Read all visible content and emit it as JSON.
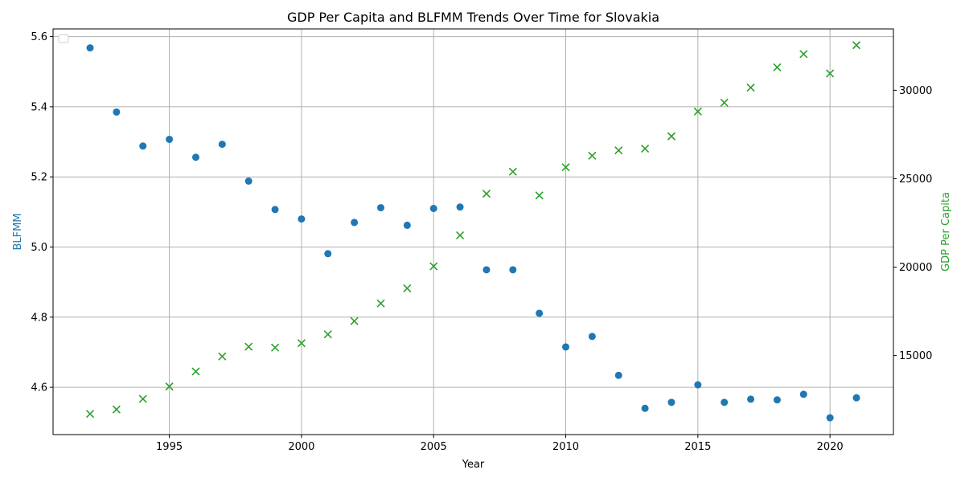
{
  "chart_data": {
    "type": "scatter",
    "title": "GDP Per Capita and BLFMM Trends Over Time for Slovakia",
    "xlabel": "Year",
    "ylabel_left": "BLFMM",
    "ylabel_right": "GDP Per Capita",
    "xlim": [
      1990.6,
      2022.4
    ],
    "ylim_left": [
      4.465,
      5.622
    ],
    "ylim_right": [
      10530,
      33470
    ],
    "x_ticks": [
      1995,
      2000,
      2005,
      2010,
      2015,
      2020
    ],
    "y_ticks_left": [
      4.6,
      4.8,
      5.0,
      5.2,
      5.4,
      5.6
    ],
    "y_ticks_right": [
      15000,
      20000,
      25000,
      30000
    ],
    "grid": true,
    "legend": "top-left (empty)",
    "colors": {
      "blfmm": "#1f77b4",
      "gdp": "#2ca02c"
    },
    "series": [
      {
        "key": "blfmm",
        "axis": "left",
        "marker": "circle",
        "x": [
          1992,
          1993,
          1994,
          1995,
          1996,
          1997,
          1998,
          1999,
          2000,
          2001,
          2002,
          2003,
          2004,
          2005,
          2006,
          2007,
          2008,
          2009,
          2010,
          2011,
          2012,
          2013,
          2014,
          2015,
          2016,
          2017,
          2018,
          2019,
          2020,
          2021
        ],
        "values": [
          5.568,
          5.385,
          5.288,
          5.307,
          5.256,
          5.293,
          5.188,
          5.107,
          5.08,
          4.981,
          5.07,
          5.112,
          5.062,
          5.11,
          5.114,
          4.935,
          4.935,
          4.811,
          4.715,
          4.745,
          4.634,
          4.54,
          4.557,
          4.607,
          4.557,
          4.566,
          4.564,
          4.58,
          4.513,
          4.57
        ]
      },
      {
        "key": "gdp",
        "axis": "right",
        "marker": "x",
        "x": [
          1992,
          1993,
          1994,
          1995,
          1996,
          1997,
          1998,
          1999,
          2000,
          2001,
          2002,
          2003,
          2004,
          2005,
          2006,
          2007,
          2008,
          2009,
          2010,
          2011,
          2012,
          2013,
          2014,
          2015,
          2016,
          2017,
          2018,
          2019,
          2020,
          2021
        ],
        "values": [
          11700,
          11950,
          12550,
          13250,
          14100,
          14950,
          15500,
          15450,
          15700,
          16200,
          16950,
          17950,
          18800,
          20050,
          21800,
          24150,
          25400,
          24050,
          25650,
          26300,
          26600,
          26700,
          27400,
          28800,
          29300,
          30150,
          31300,
          32050,
          30950,
          32550
        ]
      }
    ]
  }
}
